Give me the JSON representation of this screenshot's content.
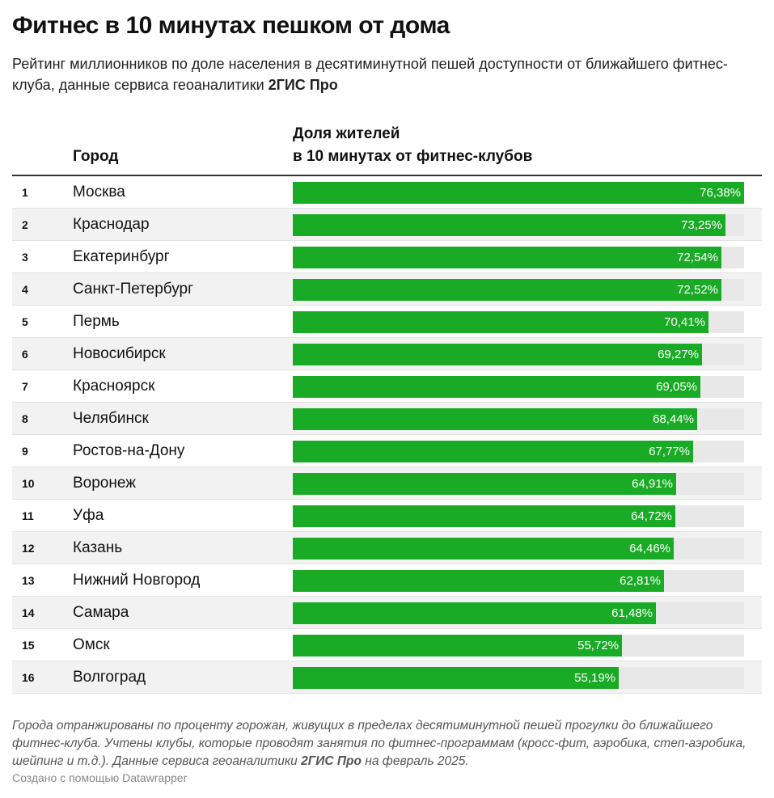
{
  "title": "Фитнес в 10 минутах пешком от дома",
  "subtitle": {
    "text": "Рейтинг миллионников по доле населения в десятиминутной пешей доступности от ближайшего фитнес-клуба, данные сервиса геоаналитики",
    "brand": "2ГИС Про"
  },
  "columns": {
    "city": "Город",
    "share_line1": "Доля жителей",
    "share_line2": "в 10 минутах от фитнес-клубов"
  },
  "colors": {
    "bar": "#1aab26",
    "track": "#e8e8e8"
  },
  "chart_data": {
    "type": "bar",
    "orientation": "horizontal",
    "title": "Фитнес в 10 минутах пешком от дома",
    "xlim": [
      0,
      76.38
    ],
    "unit": "%",
    "rows": [
      {
        "rank": "1",
        "city": "Москва",
        "value": 76.38,
        "label": "76,38%"
      },
      {
        "rank": "2",
        "city": "Краснодар",
        "value": 73.25,
        "label": "73,25%"
      },
      {
        "rank": "3",
        "city": "Екатеринбург",
        "value": 72.54,
        "label": "72,54%"
      },
      {
        "rank": "4",
        "city": "Санкт-Петербург",
        "value": 72.52,
        "label": "72,52%"
      },
      {
        "rank": "5",
        "city": "Пермь",
        "value": 70.41,
        "label": "70,41%"
      },
      {
        "rank": "6",
        "city": "Новосибирск",
        "value": 69.27,
        "label": "69,27%"
      },
      {
        "rank": "7",
        "city": "Красноярск",
        "value": 69.05,
        "label": "69,05%"
      },
      {
        "rank": "8",
        "city": "Челябинск",
        "value": 68.44,
        "label": "68,44%"
      },
      {
        "rank": "9",
        "city": "Ростов-на-Дону",
        "value": 67.77,
        "label": "67,77%"
      },
      {
        "rank": "10",
        "city": "Воронеж",
        "value": 64.91,
        "label": "64,91%"
      },
      {
        "rank": "11",
        "city": "Уфа",
        "value": 64.72,
        "label": "64,72%"
      },
      {
        "rank": "12",
        "city": "Казань",
        "value": 64.46,
        "label": "64,46%"
      },
      {
        "rank": "13",
        "city": "Нижний Новгород",
        "value": 62.81,
        "label": "62,81%"
      },
      {
        "rank": "14",
        "city": "Самара",
        "value": 61.48,
        "label": "61,48%"
      },
      {
        "rank": "15",
        "city": "Омск",
        "value": 55.72,
        "label": "55,72%"
      },
      {
        "rank": "16",
        "city": "Волгоград",
        "value": 55.19,
        "label": "55,19%"
      }
    ]
  },
  "footnote": {
    "text": "Города отранжированы по проценту горожан, живущих в пределах десятиминутной пешей прогулки до ближайшего фитнес-клуба. Учтены клубы, которые проводят занятия по фитнес-программам (кросс-фит, аэробика, степ-аэробика, шейпинг и т.д.). Данные сервиса геоаналитики",
    "brand": "2ГИС Про",
    "suffix": "на февраль 2025."
  },
  "credit": "Создано с помощью Datawrapper"
}
